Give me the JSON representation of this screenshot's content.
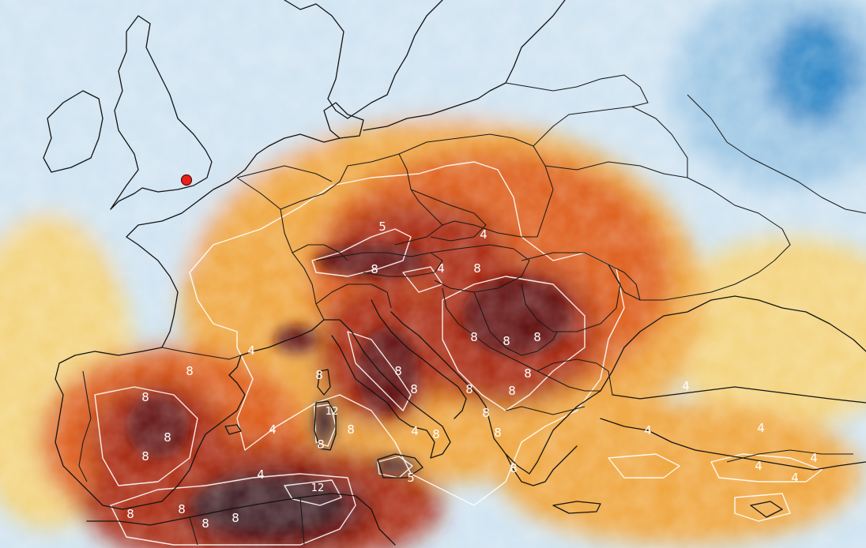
{
  "map": {
    "region": "Europe and Mediterranean",
    "variable": "temperature anomaly",
    "palette": {
      "strong_negative": "#2f86c6",
      "negative": "#9cc6e4",
      "weak_negative": "#cfe3f1",
      "neutral": "#f4f1e4",
      "weak_positive": "#f3d27a",
      "positive": "#efa43a",
      "strong_positive": "#dd5a17",
      "very_strong": "#a8260c",
      "extreme": "#5e1111",
      "max": "#3c1c22"
    },
    "contour_color": "#ffffff",
    "marker": {
      "name": "location-marker",
      "color": "#e8211d",
      "place": "London"
    },
    "contour_labels": [
      "5",
      "4",
      "8",
      "4",
      "8",
      "8",
      "8",
      "8",
      "8",
      "8",
      "8",
      "8",
      "8",
      "4",
      "8",
      "8",
      "8",
      "8",
      "8",
      "8",
      "12",
      "8",
      "4",
      "4",
      "8",
      "8",
      "5",
      "8",
      "4",
      "8",
      "8",
      "8",
      "12",
      "8",
      "8",
      "4",
      "4",
      "4",
      "4",
      "4",
      "4"
    ]
  }
}
